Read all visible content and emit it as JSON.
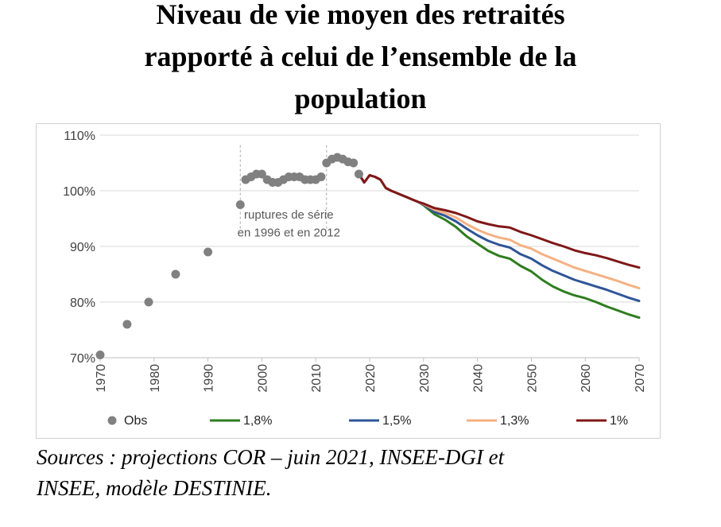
{
  "title": {
    "line1": "Niveau de vie moyen des retraités",
    "line2": "rapporté à celui de l’ensemble de la",
    "line3": "population"
  },
  "source": {
    "line1": "Sources : projections COR – juin 2021, INSEE-DGI et",
    "line2": "INSEE, modèle DESTINIE."
  },
  "chart_data": {
    "type": "line",
    "title": "Niveau de vie moyen des retraités rapporté à celui de l’ensemble de la population",
    "xlabel": "",
    "ylabel": "",
    "xlim": [
      1970,
      2070
    ],
    "ylim": [
      70,
      110
    ],
    "y_ticks": [
      70,
      80,
      90,
      100,
      110
    ],
    "y_tick_labels": [
      "70%",
      "80%",
      "90%",
      "100%",
      "110%"
    ],
    "x_ticks": [
      1970,
      1980,
      1990,
      2000,
      2010,
      2020,
      2030,
      2040,
      2050,
      2060,
      2070
    ],
    "x_tick_labels": [
      "1970",
      "1980",
      "1990",
      "2000",
      "2010",
      "2020",
      "2030",
      "2040",
      "2050",
      "2060",
      "2070"
    ],
    "grid": "horizontal",
    "annotation": {
      "line1": "ruptures de série",
      "line2": "en 1996 et en 2012",
      "break_years": [
        1996,
        2012
      ]
    },
    "legend_position": "bottom",
    "observed": {
      "name": "Obs",
      "color": "#808080",
      "x": [
        1970,
        1975,
        1979,
        1984,
        1990,
        1996,
        1997,
        1998,
        1999,
        2000,
        2001,
        2002,
        2003,
        2004,
        2005,
        2006,
        2007,
        2008,
        2009,
        2010,
        2011,
        2012,
        2013,
        2014,
        2015,
        2016,
        2017,
        2018
      ],
      "y": [
        70.5,
        76,
        80,
        85,
        89,
        97.5,
        102,
        102.5,
        103,
        103,
        102,
        101.5,
        101.5,
        102,
        102.5,
        102.5,
        102.5,
        102,
        102,
        102,
        102.5,
        105,
        105.7,
        106,
        105.7,
        105.2,
        105,
        103
      ]
    },
    "series": [
      {
        "name": "1,8%",
        "color": "#2e7d1f",
        "x": [
          2018,
          2019,
          2020,
          2021,
          2022,
          2023,
          2024,
          2025,
          2026,
          2027,
          2028,
          2029,
          2030,
          2032,
          2034,
          2036,
          2038,
          2040,
          2042,
          2044,
          2046,
          2048,
          2050,
          2052,
          2054,
          2056,
          2058,
          2060,
          2062,
          2064,
          2066,
          2068,
          2070
        ],
        "y": [
          103,
          101.5,
          102.8,
          102.5,
          102,
          100.5,
          100,
          99.6,
          99.2,
          98.8,
          98.4,
          98,
          97.4,
          95.8,
          94.8,
          93.5,
          91.8,
          90.5,
          89.2,
          88.3,
          87.8,
          86.5,
          85.5,
          84,
          82.8,
          81.9,
          81.2,
          80.7,
          80,
          79.2,
          78.5,
          77.8,
          77.2
        ]
      },
      {
        "name": "1,5%",
        "color": "#2f5597",
        "x": [
          2018,
          2019,
          2020,
          2021,
          2022,
          2023,
          2024,
          2025,
          2026,
          2027,
          2028,
          2029,
          2030,
          2032,
          2034,
          2036,
          2038,
          2040,
          2042,
          2044,
          2046,
          2048,
          2050,
          2052,
          2054,
          2056,
          2058,
          2060,
          2062,
          2064,
          2066,
          2068,
          2070
        ],
        "y": [
          103,
          101.5,
          102.8,
          102.5,
          102,
          100.5,
          100,
          99.6,
          99.2,
          98.8,
          98.4,
          98,
          97.5,
          96.2,
          95.5,
          94.5,
          93.2,
          92,
          91,
          90.3,
          89.8,
          88.6,
          87.8,
          86.6,
          85.6,
          84.8,
          84,
          83.4,
          82.8,
          82.2,
          81.5,
          80.8,
          80.2
        ]
      },
      {
        "name": "1,3%",
        "color": "#f4b183",
        "x": [
          2018,
          2019,
          2020,
          2021,
          2022,
          2023,
          2024,
          2025,
          2026,
          2027,
          2028,
          2029,
          2030,
          2032,
          2034,
          2036,
          2038,
          2040,
          2042,
          2044,
          2046,
          2048,
          2050,
          2052,
          2054,
          2056,
          2058,
          2060,
          2062,
          2064,
          2066,
          2068,
          2070
        ],
        "y": [
          103,
          101.5,
          102.8,
          102.5,
          102,
          100.5,
          100,
          99.6,
          99.2,
          98.8,
          98.4,
          98,
          97.6,
          96.6,
          96,
          95.2,
          94,
          93,
          92.2,
          91.6,
          91.2,
          90.2,
          89.6,
          88.6,
          87.8,
          87,
          86.2,
          85.6,
          85,
          84.4,
          83.8,
          83.1,
          82.5
        ]
      },
      {
        "name": "1%",
        "color": "#7f1818",
        "x": [
          2018,
          2019,
          2020,
          2021,
          2022,
          2023,
          2024,
          2025,
          2026,
          2027,
          2028,
          2029,
          2030,
          2032,
          2034,
          2036,
          2038,
          2040,
          2042,
          2044,
          2046,
          2048,
          2050,
          2052,
          2054,
          2056,
          2058,
          2060,
          2062,
          2064,
          2066,
          2068,
          2070
        ],
        "y": [
          103,
          101.5,
          102.8,
          102.5,
          102,
          100.5,
          100,
          99.6,
          99.2,
          98.8,
          98.4,
          98,
          97.7,
          96.9,
          96.5,
          96,
          95.3,
          94.5,
          94,
          93.6,
          93.4,
          92.6,
          92,
          91.3,
          90.6,
          90,
          89.3,
          88.8,
          88.4,
          87.9,
          87.3,
          86.7,
          86.2
        ]
      }
    ]
  }
}
